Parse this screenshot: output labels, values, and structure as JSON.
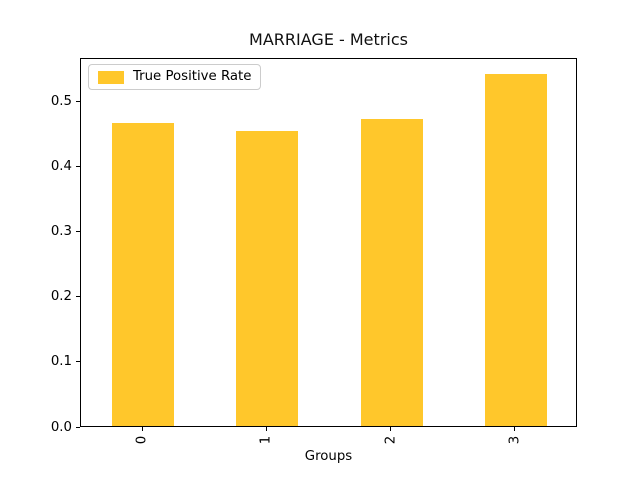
{
  "figure": {
    "background": "#ffffff"
  },
  "chart_data": {
    "type": "bar",
    "title": "MARRIAGE - Metrics",
    "categories": [
      "0",
      "1",
      "2",
      "3"
    ],
    "series": [
      {
        "name": "True Positive Rate",
        "values": [
          0.466,
          0.453,
          0.472,
          0.541
        ]
      }
    ],
    "xlabel": "Groups",
    "ylabel": "",
    "ylim": [
      0,
      0.567
    ],
    "yticks": [
      0.0,
      0.1,
      0.2,
      0.3,
      0.4,
      0.5
    ],
    "ytick_labels": [
      "0.0",
      "0.1",
      "0.2",
      "0.3",
      "0.4",
      "0.5"
    ],
    "xtick_rotation": 90,
    "grid": false,
    "bar_color": "#FFC72B",
    "legend": {
      "label": "True Positive Rate",
      "position": "upper left"
    }
  }
}
